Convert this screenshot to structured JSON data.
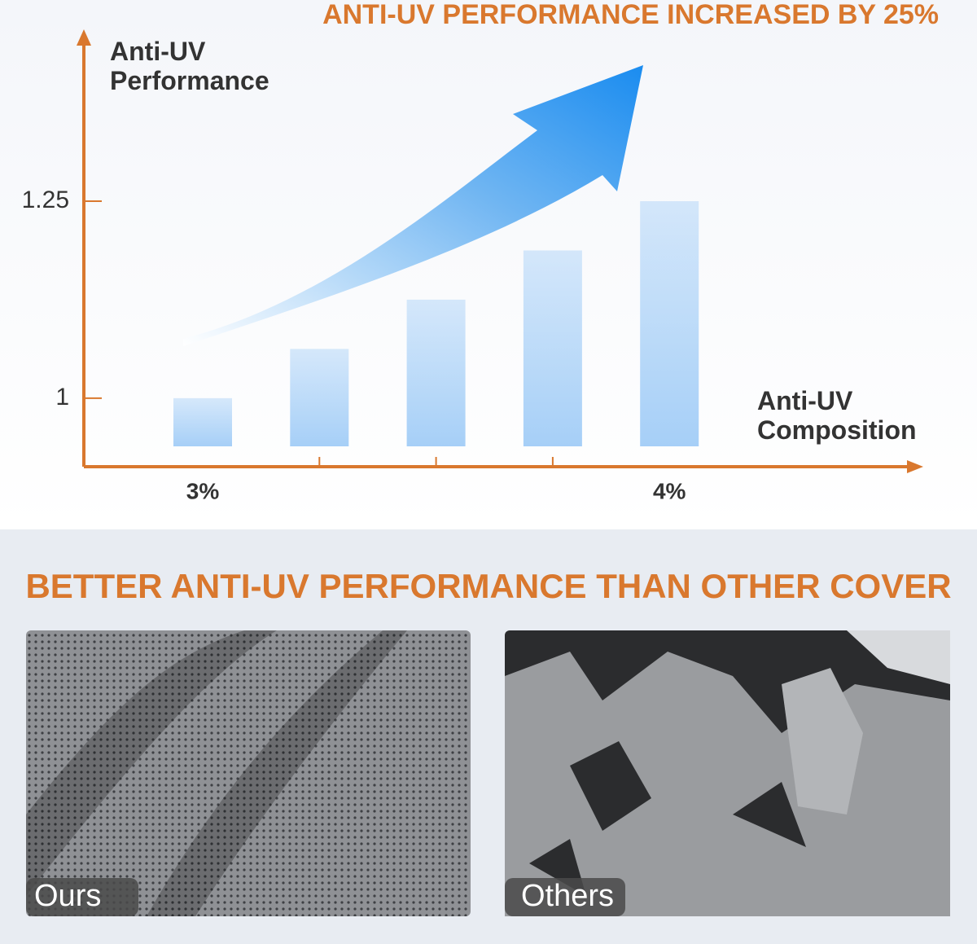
{
  "chart_data": {
    "type": "bar",
    "title": "ANTI-UV PERFORMANCE INCREASED BY 25%",
    "y_label": "Anti-UV Performance",
    "x_label": "Anti-UV Composition",
    "categories": [
      "3%",
      null,
      null,
      null,
      "4%"
    ],
    "values": [
      1,
      1.0625,
      1.125,
      1.1875,
      1.25
    ],
    "color": "#a6cff7",
    "axis_color": "#d9782e",
    "ylim": [
      0.913,
      1.464
    ],
    "yticks": [
      1,
      1.25
    ]
  },
  "comparison": {
    "title": "BETTER ANTI-UV PERFORMANCE THAN OTHER COVER",
    "panels": [
      {
        "label": "Ours"
      },
      {
        "label": "Others"
      }
    ]
  }
}
